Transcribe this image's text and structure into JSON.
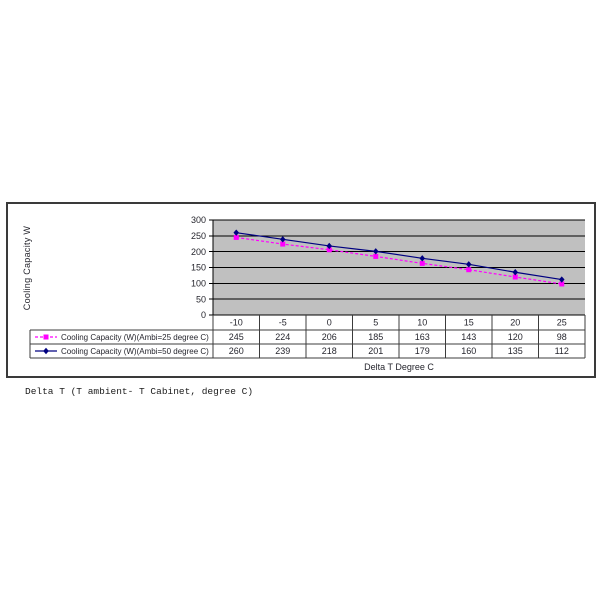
{
  "caption": "Delta T (T ambient- T Cabinet, degree C)",
  "chart_data": {
    "type": "line",
    "title": "",
    "xlabel": "Delta T Degree C",
    "ylabel": "Cooling Capacity W",
    "categories": [
      "-10",
      "-5",
      "0",
      "5",
      "10",
      "15",
      "20",
      "25"
    ],
    "series": [
      {
        "name": "Cooling Capacity (W)(Ambi=25 degree C)",
        "values": [
          245,
          224,
          206,
          185,
          163,
          143,
          120,
          98
        ],
        "color": "#ff00ff",
        "marker": "square",
        "line_style": "dashed"
      },
      {
        "name": "Cooling Capacity (W)(Ambi=50 degree C)",
        "values": [
          260,
          239,
          218,
          201,
          179,
          160,
          135,
          112
        ],
        "color": "#000080",
        "marker": "diamond",
        "line_style": "solid"
      }
    ],
    "ylim": [
      0,
      300
    ],
    "y_ticks": [
      0,
      50,
      100,
      150,
      200,
      250,
      300
    ],
    "grid": "horizontal",
    "legend_position": "data-table-left",
    "plot_background": "#c0c0c0",
    "grid_color": "#000000",
    "table_line_color": "#3c3c3c",
    "text_color": "#26262e"
  }
}
